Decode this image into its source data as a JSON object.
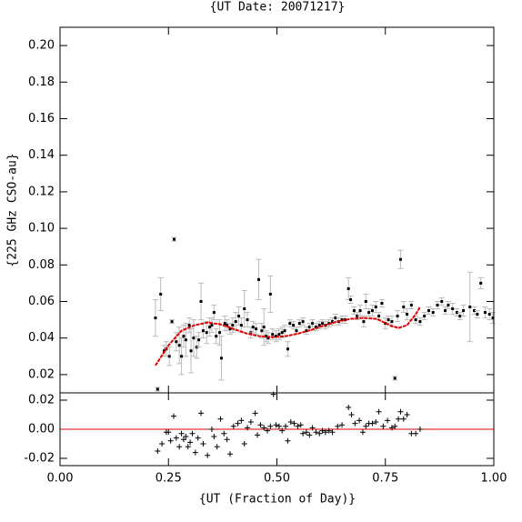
{
  "chart_data": [
    {
      "type": "scatter",
      "title": "{UT Date: 20071217}",
      "y_label": "{225 GHz CSO-au}",
      "ylim": [
        0.01,
        0.21
      ],
      "yticks": [
        0.02,
        0.04,
        0.06,
        0.08,
        {
          "value": 0.1,
          "label": "0.10"
        },
        0.12,
        0.14,
        0.16,
        0.18,
        {
          "value": 0.2,
          "label": "0.20"
        }
      ],
      "series": [
        {
          "color": "#000000",
          "error_color": "#bbbbbb",
          "x": [
            0.22,
            0.225,
            0.232,
            0.24,
            0.245,
            0.252,
            0.258,
            0.263,
            0.268,
            0.275,
            0.28,
            0.285,
            0.29,
            0.298,
            0.302,
            0.308,
            0.315,
            0.32,
            0.325,
            0.33,
            0.338,
            0.345,
            0.35,
            0.355,
            0.36,
            0.368,
            0.372,
            0.38,
            0.385,
            0.392,
            0.398,
            0.405,
            0.412,
            0.418,
            0.425,
            0.432,
            0.44,
            0.445,
            0.452,
            0.458,
            0.465,
            0.47,
            0.475,
            0.48,
            0.485,
            0.49,
            0.498,
            0.505,
            0.512,
            0.518,
            0.525,
            0.53,
            0.538,
            0.545,
            0.552,
            0.56,
            0.568,
            0.575,
            0.582,
            0.59,
            0.598,
            0.605,
            0.612,
            0.62,
            0.628,
            0.635,
            0.642,
            0.65,
            0.657,
            0.665,
            0.67,
            0.678,
            0.685,
            0.692,
            0.7,
            0.705,
            0.712,
            0.72,
            0.728,
            0.735,
            0.742,
            0.75,
            0.757,
            0.765,
            0.772,
            0.778,
            0.785,
            0.792,
            0.8,
            0.81,
            0.82,
            0.83,
            0.84,
            0.85,
            0.86,
            0.87,
            0.88,
            0.888,
            0.895,
            0.905,
            0.915,
            0.922,
            0.93,
            0.945,
            0.955,
            0.962,
            0.97,
            0.98,
            0.99,
            0.998
          ],
          "values": [
            0.051,
            0.012,
            0.064,
            0.033,
            0.034,
            0.03,
            0.049,
            0.094,
            0.038,
            0.036,
            0.03,
            0.041,
            0.039,
            0.047,
            0.033,
            0.04,
            0.035,
            0.039,
            0.06,
            0.044,
            0.043,
            0.046,
            0.047,
            0.054,
            0.041,
            0.043,
            0.029,
            0.048,
            0.047,
            0.045,
            0.047,
            0.049,
            0.052,
            0.047,
            0.056,
            0.05,
            0.043,
            0.046,
            0.045,
            0.072,
            0.044,
            0.046,
            0.041,
            0.04,
            0.064,
            0.042,
            0.041,
            0.042,
            0.043,
            0.044,
            0.034,
            0.048,
            0.047,
            0.044,
            0.048,
            0.049,
            0.044,
            0.046,
            0.048,
            0.046,
            0.047,
            0.048,
            0.047,
            0.048,
            0.049,
            0.051,
            0.049,
            0.05,
            0.05,
            0.067,
            0.061,
            0.055,
            0.052,
            0.055,
            0.049,
            0.06,
            0.054,
            0.055,
            0.057,
            0.052,
            0.059,
            0.048,
            0.05,
            0.049,
            0.018,
            0.052,
            0.083,
            0.057,
            0.053,
            0.058,
            0.05,
            0.049,
            0.052,
            0.055,
            0.054,
            0.058,
            0.06,
            0.055,
            0.058,
            0.056,
            0.054,
            0.052,
            0.055,
            0.057,
            0.055,
            0.053,
            0.07,
            0.054,
            0.053,
            0.051
          ],
          "errors": [
            0.01,
            0.001,
            0.009,
            0.003,
            0.004,
            0.005,
            0.001,
            0.001,
            0.005,
            0.01,
            0.01,
            0.006,
            0.009,
            0.004,
            0.012,
            0.01,
            0.006,
            0.004,
            0.01,
            0.004,
            0.006,
            0.005,
            0.004,
            0.004,
            0.004,
            0.007,
            0.012,
            0.004,
            0.003,
            0.003,
            0.004,
            0.005,
            0.005,
            0.004,
            0.01,
            0.004,
            0.003,
            0.003,
            0.003,
            0.011,
            0.004,
            0.01,
            0.003,
            0.003,
            0.01,
            0.003,
            0.003,
            0.003,
            0.003,
            0.003,
            0.004,
            0.002,
            0.002,
            0.002,
            0.002,
            0.002,
            0.002,
            0.002,
            0.002,
            0.002,
            0.002,
            0.002,
            0.002,
            0.002,
            0.002,
            0.002,
            0.002,
            0.002,
            0.002,
            0.006,
            0.002,
            0.002,
            0.002,
            0.003,
            0.003,
            0.004,
            0.002,
            0.003,
            0.003,
            0.002,
            0.002,
            0.003,
            0.002,
            0.003,
            0.001,
            0.003,
            0.005,
            0.003,
            0.003,
            0.002,
            0.002,
            0.002,
            0.002,
            0.002,
            0.002,
            0.002,
            0.002,
            0.002,
            0.002,
            0.003,
            0.002,
            0.002,
            0.003,
            0.019,
            0.002,
            0.002,
            0.003,
            0.003,
            0.003,
            0.003
          ]
        },
        {
          "type": "line",
          "color": "#e00000",
          "x": [
            0.22,
            0.25,
            0.28,
            0.31,
            0.34,
            0.37,
            0.4,
            0.43,
            0.46,
            0.49,
            0.52,
            0.55,
            0.58,
            0.61,
            0.64,
            0.67,
            0.7,
            0.73,
            0.76,
            0.78,
            0.8,
            0.82,
            0.83
          ],
          "values": [
            0.025,
            0.036,
            0.044,
            0.047,
            0.0485,
            0.0475,
            0.045,
            0.0425,
            0.041,
            0.0405,
            0.041,
            0.0425,
            0.0445,
            0.047,
            0.049,
            0.0505,
            0.051,
            0.0505,
            0.047,
            0.0455,
            0.047,
            0.053,
            0.057
          ]
        }
      ]
    },
    {
      "type": "scatter",
      "x_label": "{UT (Fraction of Day)}",
      "xlim": [
        0,
        1
      ],
      "xticks": [
        {
          "value": 0,
          "label": "0.00"
        },
        0.25,
        {
          "value": 0.5,
          "label": "0.50"
        },
        0.75,
        {
          "value": 1,
          "label": "1.00"
        }
      ],
      "ylim": [
        -0.025,
        0.025
      ],
      "yticks": [
        -0.02,
        {
          "value": 0,
          "label": "0.00"
        },
        0.02
      ],
      "zero_line_color": "#e00000",
      "series": [
        {
          "color": "#000000",
          "x": [
            0.225,
            0.235,
            0.245,
            0.25,
            0.255,
            0.262,
            0.268,
            0.275,
            0.28,
            0.285,
            0.29,
            0.295,
            0.3,
            0.305,
            0.312,
            0.318,
            0.325,
            0.33,
            0.34,
            0.35,
            0.355,
            0.362,
            0.37,
            0.378,
            0.385,
            0.392,
            0.4,
            0.41,
            0.418,
            0.425,
            0.432,
            0.44,
            0.45,
            0.455,
            0.462,
            0.47,
            0.478,
            0.485,
            0.492,
            0.498,
            0.505,
            0.512,
            0.52,
            0.525,
            0.532,
            0.54,
            0.548,
            0.555,
            0.56,
            0.568,
            0.575,
            0.582,
            0.59,
            0.598,
            0.605,
            0.612,
            0.62,
            0.628,
            0.64,
            0.65,
            0.665,
            0.672,
            0.68,
            0.69,
            0.698,
            0.705,
            0.712,
            0.72,
            0.728,
            0.735,
            0.745,
            0.755,
            0.765,
            0.772,
            0.78,
            0.785,
            0.792,
            0.8,
            0.81,
            0.82,
            0.83
          ],
          "values": [
            -0.015,
            -0.01,
            -0.002,
            -0.002,
            -0.008,
            0.009,
            -0.006,
            -0.012,
            -0.003,
            -0.007,
            -0.005,
            -0.012,
            -0.009,
            -0.003,
            -0.016,
            -0.006,
            0.011,
            -0.01,
            -0.018,
            0,
            -0.005,
            -0.012,
            0.007,
            -0.003,
            -0.007,
            -0.017,
            0.002,
            0.004,
            0.006,
            -0.01,
            0.001,
            0.005,
            0.011,
            -0.004,
            0.003,
            0.001,
            -0.001,
            0.002,
            0.024,
            0.003,
            0.002,
            -0.001,
            0.002,
            -0.008,
            0.005,
            0.004,
            0.002,
            0.003,
            -0.003,
            -0.002,
            -0.004,
            0.001,
            -0.002,
            -0.003,
            -0.001,
            -0.002,
            -0.001,
            -0.002,
            0.002,
            0.003,
            0.015,
            0.01,
            0.004,
            0.006,
            -0.002,
            0.002,
            0.004,
            0.004,
            0.005,
            0.012,
            0.002,
            0.006,
            0.001,
            0.002,
            0.007,
            0.012,
            0.007,
            0.01,
            -0.003,
            -0.003,
            0
          ]
        }
      ]
    }
  ]
}
